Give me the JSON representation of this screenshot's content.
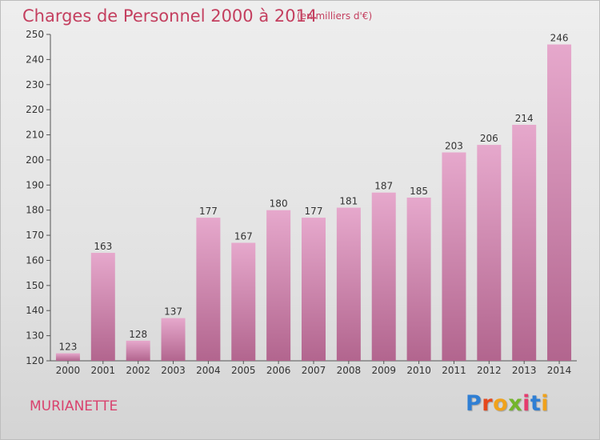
{
  "title": "Charges de Personnel 2000 à 2014",
  "subtitle": "(en milliers d'€)",
  "commune": "MURIANETTE",
  "logo": {
    "letters": [
      "P",
      "r",
      "o",
      "x",
      "i",
      "t",
      "i"
    ]
  },
  "colors": {
    "bar_top": "#e6a8cc",
    "bar_bottom": "#b2658e",
    "text_accent": "#c43f5f"
  },
  "chart_data": {
    "type": "bar",
    "title": "Charges de Personnel 2000 à 2014",
    "subtitle": "(en milliers d'€)",
    "categories": [
      "2000",
      "2001",
      "2002",
      "2003",
      "2004",
      "2005",
      "2006",
      "2007",
      "2008",
      "2009",
      "2010",
      "2011",
      "2012",
      "2013",
      "2014"
    ],
    "values": [
      123,
      163,
      128,
      137,
      177,
      167,
      180,
      177,
      181,
      187,
      185,
      203,
      206,
      214,
      246
    ],
    "ylim": [
      120,
      250
    ],
    "yticks": [
      120,
      130,
      140,
      150,
      160,
      170,
      180,
      190,
      200,
      210,
      220,
      230,
      240,
      250
    ],
    "grid": false,
    "data_labels": true
  }
}
